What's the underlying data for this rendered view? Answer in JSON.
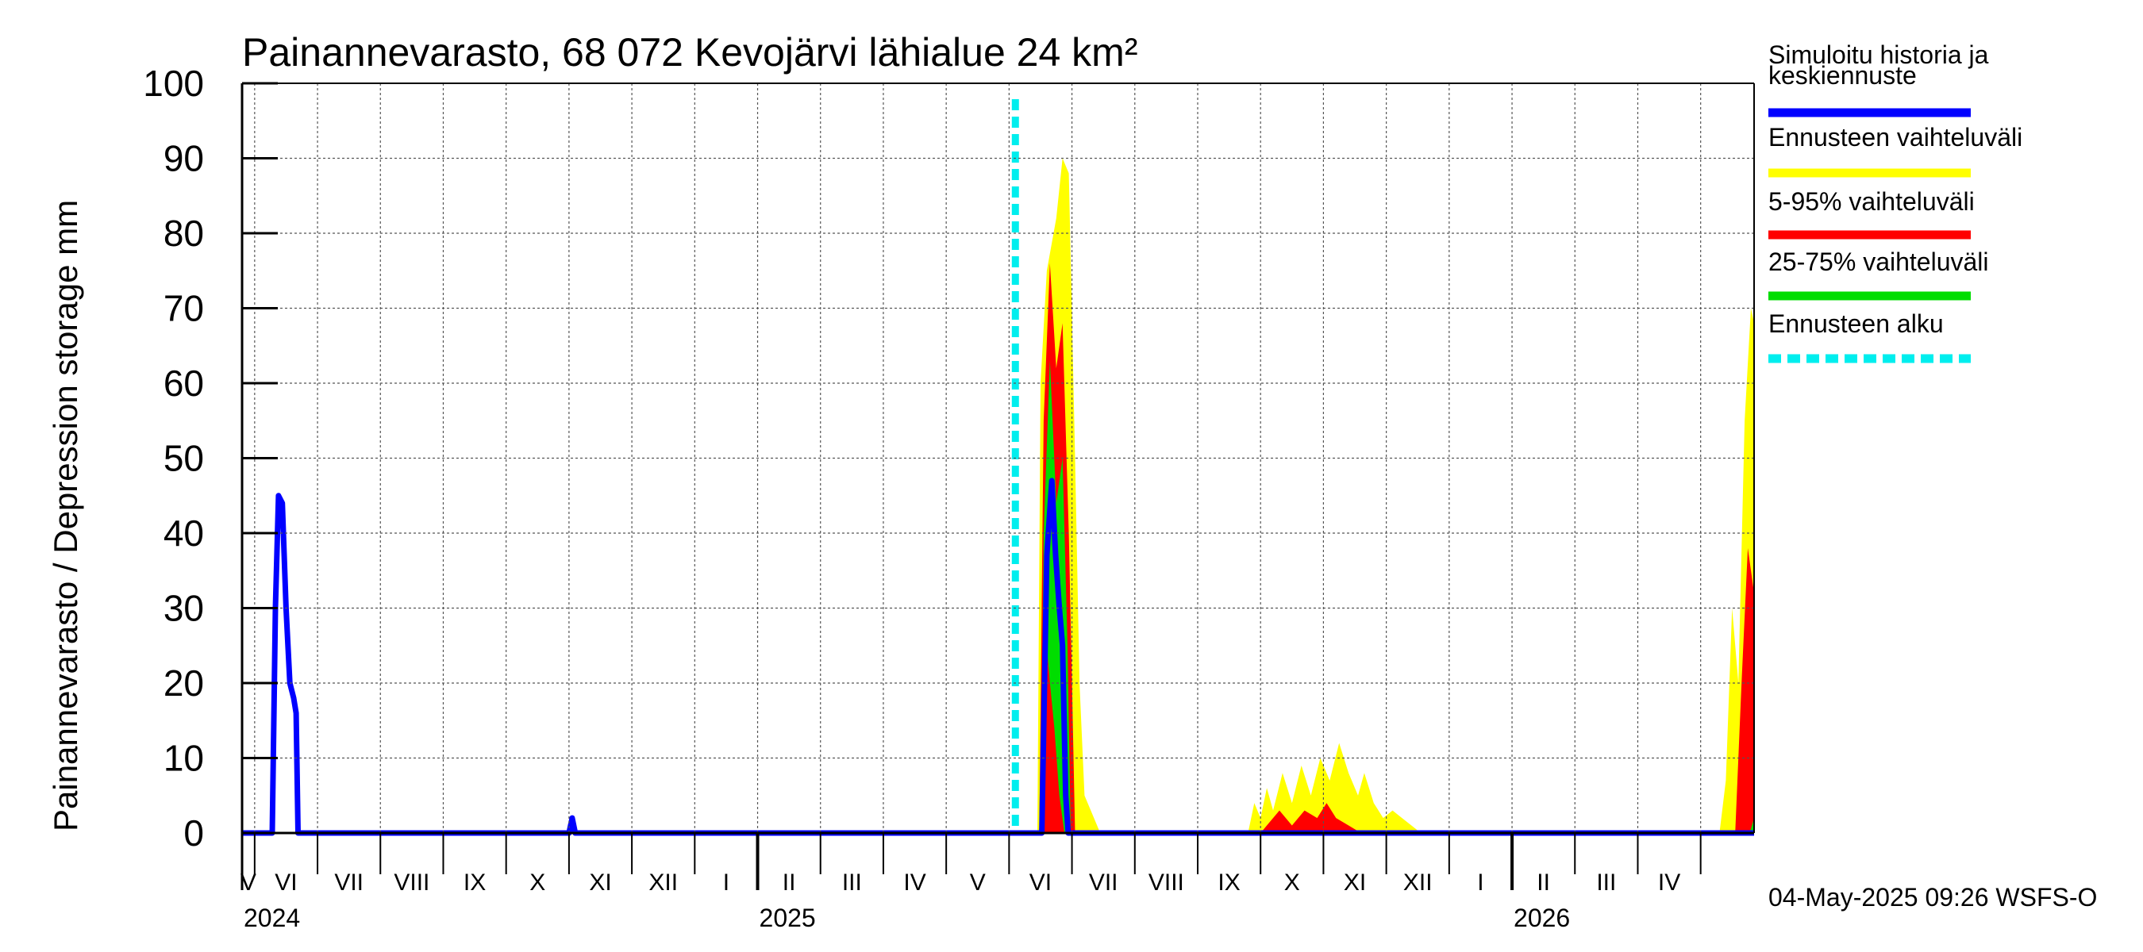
{
  "chart_data": {
    "type": "area",
    "title": "Painannevarasto, 68 072 Kevojärvi lähialue 24 km²",
    "ylabel": "Painannevarasto / Depression storage    mm",
    "xlabel": "",
    "ylim": [
      0,
      100
    ],
    "yticks": [
      "0",
      "10",
      "20",
      "30",
      "40",
      "50",
      "60",
      "70",
      "80",
      "90",
      "100"
    ],
    "grid": true,
    "x_unit": "months since 2024-04-01",
    "xlim": [
      0.8,
      24.85
    ],
    "month_labels": [
      "V",
      "VI",
      "VII",
      "VIII",
      "IX",
      "X",
      "XI",
      "XII",
      "I",
      "II",
      "III",
      "IV",
      "V",
      "VI",
      "VII",
      "VIII",
      "IX",
      "X",
      "XI",
      "XII",
      "I",
      "II",
      "III",
      "IV"
    ],
    "year_labels": [
      {
        "label": "2024",
        "at": 0.8
      },
      {
        "label": "2025",
        "at": 9
      },
      {
        "label": "2026",
        "at": 21
      }
    ],
    "forecast_start": 13.1,
    "series": [
      {
        "name": "Ennusteen vaihteluväli",
        "color": "#ffff00",
        "kind": "band",
        "upper": [
          [
            13.45,
            0
          ],
          [
            13.5,
            60
          ],
          [
            13.6,
            75
          ],
          [
            13.75,
            82
          ],
          [
            13.85,
            90
          ],
          [
            13.95,
            88
          ],
          [
            14.05,
            50
          ],
          [
            14.12,
            20
          ],
          [
            14.2,
            5
          ],
          [
            14.35,
            2
          ],
          [
            14.45,
            0
          ],
          [
            16.8,
            0
          ],
          [
            16.9,
            4
          ],
          [
            17.0,
            2
          ],
          [
            17.1,
            6
          ],
          [
            17.2,
            3
          ],
          [
            17.35,
            8
          ],
          [
            17.5,
            4
          ],
          [
            17.65,
            9
          ],
          [
            17.8,
            5
          ],
          [
            17.95,
            10
          ],
          [
            18.1,
            7
          ],
          [
            18.25,
            12
          ],
          [
            18.4,
            8
          ],
          [
            18.55,
            5
          ],
          [
            18.65,
            8
          ],
          [
            18.8,
            4
          ],
          [
            18.95,
            2
          ],
          [
            19.1,
            3
          ],
          [
            19.25,
            2
          ],
          [
            19.4,
            1
          ],
          [
            19.55,
            0
          ],
          [
            24.3,
            0
          ],
          [
            24.4,
            7
          ],
          [
            24.5,
            30
          ],
          [
            24.6,
            20
          ],
          [
            24.7,
            55
          ],
          [
            24.8,
            70
          ],
          [
            24.85,
            68
          ]
        ],
        "lower": [
          [
            13.45,
            0
          ],
          [
            24.85,
            0
          ]
        ]
      },
      {
        "name": "5-95% vaihteluväli",
        "color": "#ff0000",
        "kind": "band",
        "upper": [
          [
            13.48,
            0
          ],
          [
            13.55,
            55
          ],
          [
            13.65,
            76
          ],
          [
            13.75,
            62
          ],
          [
            13.85,
            68
          ],
          [
            13.95,
            40
          ],
          [
            14.0,
            20
          ],
          [
            14.05,
            0
          ],
          [
            17.0,
            0
          ],
          [
            17.1,
            1
          ],
          [
            17.3,
            3
          ],
          [
            17.5,
            1
          ],
          [
            17.7,
            3
          ],
          [
            17.9,
            2
          ],
          [
            18.05,
            4
          ],
          [
            18.2,
            2
          ],
          [
            18.4,
            1
          ],
          [
            18.6,
            0
          ],
          [
            24.55,
            0
          ],
          [
            24.65,
            20
          ],
          [
            24.75,
            38
          ],
          [
            24.85,
            32
          ]
        ],
        "lower": [
          [
            13.48,
            0
          ],
          [
            24.85,
            0
          ]
        ]
      },
      {
        "name": "25-75% vaihteluväli",
        "color": "#00dd00",
        "kind": "band",
        "upper": [
          [
            13.5,
            0
          ],
          [
            13.55,
            40
          ],
          [
            13.65,
            63
          ],
          [
            13.75,
            44
          ],
          [
            13.85,
            50
          ],
          [
            13.93,
            25
          ],
          [
            13.98,
            0
          ],
          [
            24.78,
            0
          ],
          [
            24.85,
            2
          ]
        ],
        "lower": [
          [
            13.5,
            0
          ],
          [
            13.55,
            30
          ],
          [
            13.65,
            20
          ],
          [
            13.72,
            14
          ],
          [
            13.8,
            5
          ],
          [
            13.88,
            0
          ],
          [
            24.85,
            0
          ]
        ]
      },
      {
        "name": "Simuloitu historia ja keskiennuste",
        "color": "#0000ff",
        "kind": "line",
        "values": [
          [
            0.8,
            0
          ],
          [
            1.2,
            0
          ],
          [
            1.28,
            0
          ],
          [
            1.33,
            30
          ],
          [
            1.38,
            45
          ],
          [
            1.44,
            44
          ],
          [
            1.5,
            30
          ],
          [
            1.56,
            20
          ],
          [
            1.62,
            18
          ],
          [
            1.66,
            16
          ],
          [
            1.69,
            0
          ],
          [
            2.0,
            0
          ],
          [
            6.0,
            0
          ],
          [
            6.05,
            2
          ],
          [
            6.1,
            0
          ],
          [
            13.45,
            0
          ],
          [
            13.52,
            0
          ],
          [
            13.6,
            37
          ],
          [
            13.68,
            47
          ],
          [
            13.74,
            37
          ],
          [
            13.8,
            30
          ],
          [
            13.85,
            25
          ],
          [
            13.9,
            5
          ],
          [
            13.94,
            0
          ],
          [
            24.85,
            0
          ]
        ]
      },
      {
        "name": "Ennusteen alku",
        "color": "#00eeee",
        "kind": "vline",
        "x": 13.1
      }
    ]
  },
  "legend": [
    {
      "label_lines": [
        "Simuloitu historia ja",
        "keskiennuste"
      ],
      "color": "#0000ff",
      "style": "solid"
    },
    {
      "label_lines": [
        "Ennusteen vaihteluväli"
      ],
      "color": "#ffff00",
      "style": "solid"
    },
    {
      "label_lines": [
        "5-95% vaihteluväli"
      ],
      "color": "#ff0000",
      "style": "solid"
    },
    {
      "label_lines": [
        "25-75% vaihteluväli"
      ],
      "color": "#00dd00",
      "style": "solid"
    },
    {
      "label_lines": [
        "Ennusteen alku"
      ],
      "color": "#00eeee",
      "style": "dashed"
    }
  ],
  "footer": "04-May-2025 09:26 WSFS-O"
}
